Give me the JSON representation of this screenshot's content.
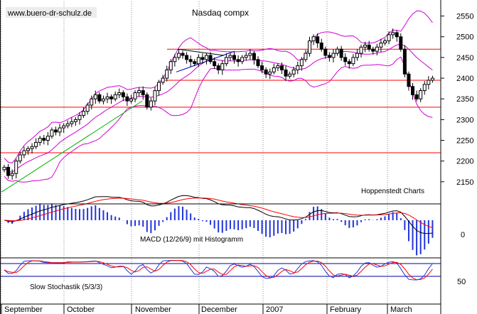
{
  "chart_data": {
    "type": "candlestick",
    "title": "Nasdaq compx",
    "watermark": "www.buero-dr-schulz.de",
    "source": "Hoppenstedt Charts",
    "months": [
      "September",
      "October",
      "November",
      "December",
      "2007",
      "February",
      "March"
    ],
    "price_axis": {
      "ticks": [
        2150,
        2200,
        2250,
        2300,
        2350,
        2400,
        2450,
        2500,
        2550
      ],
      "ylim": [
        2100,
        2575
      ]
    },
    "horizontal_lines": [
      2470,
      2395,
      2330,
      2220
    ],
    "macd": {
      "label": "MACD (12/26/9) mit Histogramm",
      "ticks": [
        0
      ]
    },
    "stochastic": {
      "label": "Slow Stochastik (5/3/3)",
      "ticks": [
        50
      ],
      "levels": [
        80,
        20
      ]
    },
    "price_series": [
      2185,
      2165,
      2170,
      2200,
      2215,
      2225,
      2230,
      2235,
      2245,
      2255,
      2250,
      2260,
      2275,
      2270,
      2280,
      2285,
      2290,
      2295,
      2300,
      2310,
      2320,
      2335,
      2350,
      2360,
      2345,
      2350,
      2355,
      2350,
      2360,
      2365,
      2355,
      2345,
      2350,
      2365,
      2370,
      2360,
      2330,
      2345,
      2370,
      2390,
      2400,
      2420,
      2440,
      2450,
      2460,
      2455,
      2445,
      2440,
      2435,
      2450,
      2445,
      2455,
      2440,
      2430,
      2420,
      2435,
      2450,
      2455,
      2445,
      2440,
      2450,
      2455,
      2460,
      2445,
      2430,
      2420,
      2410,
      2415,
      2425,
      2430,
      2420,
      2405,
      2410,
      2420,
      2430,
      2445,
      2460,
      2490,
      2500,
      2485,
      2470,
      2455,
      2450,
      2460,
      2470,
      2450,
      2440,
      2435,
      2450,
      2460,
      2475,
      2480,
      2470,
      2465,
      2475,
      2485,
      2490,
      2505,
      2510,
      2500,
      2470,
      2410,
      2380,
      2360,
      2350,
      2370,
      2385,
      2395,
      2400
    ]
  }
}
